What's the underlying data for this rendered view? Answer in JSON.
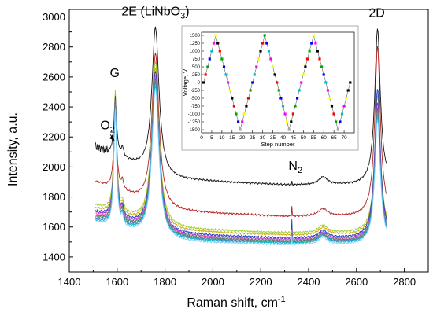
{
  "chart_data": [
    {
      "type": "line",
      "xlabel": "Raman shift, cm",
      "xlabel_sup": "-1",
      "ylabel": "Intensity, a.u.",
      "xlim": [
        1400,
        2900
      ],
      "ylim": [
        1300,
        3050
      ],
      "xticks": [
        1400,
        1600,
        1800,
        2000,
        2200,
        2400,
        2600,
        2800
      ],
      "yticks": [
        1400,
        1600,
        1800,
        2000,
        2200,
        2400,
        2600,
        2800,
        3000
      ],
      "grid": false,
      "annotations": [
        {
          "text": "2E (LiNbO",
          "sub": "3",
          "suffix": ")",
          "x": 1760,
          "y": 3010
        },
        {
          "text": "G",
          "x": 1590,
          "y": 2600
        },
        {
          "text": "O",
          "sub": "2",
          "suffix": "",
          "x": 1560,
          "y": 2250
        },
        {
          "text": "N",
          "sub": "2",
          "suffix": "",
          "x": 2345,
          "y": 1980
        },
        {
          "text": "2D",
          "x": 2685,
          "y": 3000
        }
      ],
      "series": [
        {
          "color": "#111111",
          "baseline_start": 2130,
          "baseline_mid": 1880,
          "g": 2440,
          "e": 2930,
          "n2": 1900,
          "d": 2920,
          "o2": true
        },
        {
          "color": "#b22222",
          "baseline_start": 1900,
          "baseline_mid": 1670,
          "g": 2400,
          "e": 2760,
          "n2": 1740,
          "d": 2800
        },
        {
          "color": "#9acd32",
          "baseline_start": 1740,
          "baseline_mid": 1560,
          "g": 2500,
          "e": 2700,
          "n2": 1600,
          "d": 2500
        },
        {
          "color": "#ccaa00",
          "baseline_start": 1720,
          "baseline_mid": 1545,
          "g": 2470,
          "e": 2660,
          "n2": 1590,
          "d": 2480
        },
        {
          "color": "#1f3fbf",
          "baseline_start": 1700,
          "baseline_mid": 1525,
          "g": 2460,
          "e": 2640,
          "n2": 1650,
          "d": 2520
        },
        {
          "color": "#8a2be2",
          "baseline_start": 1690,
          "baseline_mid": 1515,
          "g": 2440,
          "e": 2610,
          "n2": 1580,
          "d": 2430
        },
        {
          "color": "#ff69b4",
          "baseline_start": 1680,
          "baseline_mid": 1510,
          "g": 2430,
          "e": 2600,
          "n2": 1570,
          "d": 2400
        },
        {
          "color": "#2e8b57",
          "baseline_start": 1670,
          "baseline_mid": 1505,
          "g": 2420,
          "e": 2590,
          "n2": 1560,
          "d": 2390
        },
        {
          "color": "#708090",
          "baseline_start": 1660,
          "baseline_mid": 1500,
          "g": 2410,
          "e": 2570,
          "n2": 1555,
          "d": 2370
        },
        {
          "color": "#4682b4",
          "baseline_start": 1650,
          "baseline_mid": 1495,
          "g": 2400,
          "e": 2560,
          "n2": 1550,
          "d": 2350
        },
        {
          "color": "#00bcd4",
          "baseline_start": 1640,
          "baseline_mid": 1490,
          "g": 2390,
          "e": 2540,
          "n2": 1545,
          "d": 2330
        },
        {
          "color": "#87cefa",
          "baseline_start": 1630,
          "baseline_mid": 1480,
          "g": 2380,
          "e": 2520,
          "n2": 1535,
          "d": 2310
        }
      ]
    },
    {
      "type": "line",
      "role": "inset",
      "xlabel": "Step number",
      "ylabel": "Voltage, V",
      "xlim": [
        0,
        75
      ],
      "ylim": [
        -1600,
        1600
      ],
      "xticks": [
        0,
        5,
        10,
        15,
        20,
        25,
        30,
        35,
        40,
        45,
        50,
        55,
        60,
        65,
        70
      ],
      "yticks": [
        -1500,
        -1250,
        -1000,
        -750,
        -500,
        -250,
        0,
        250,
        500,
        750,
        1000,
        1250,
        1500
      ],
      "points": [
        {
          "x": 1,
          "y": 0,
          "c": "#000000"
        },
        {
          "x": 2,
          "y": 250,
          "c": "#ff0000"
        },
        {
          "x": 3,
          "y": 500,
          "c": "#00aa00"
        },
        {
          "x": 4,
          "y": 750,
          "c": "#0000ff"
        },
        {
          "x": 5,
          "y": 1000,
          "c": "#00bcd4"
        },
        {
          "x": 6,
          "y": 1250,
          "c": "#ff00ff"
        },
        {
          "x": 7,
          "y": 1500,
          "c": "#ffff00"
        },
        {
          "x": 8,
          "y": 1250,
          "c": "#000000"
        },
        {
          "x": 9,
          "y": 1000,
          "c": "#ff0000"
        },
        {
          "x": 10,
          "y": 750,
          "c": "#00aa00"
        },
        {
          "x": 11,
          "y": 500,
          "c": "#0000ff"
        },
        {
          "x": 12,
          "y": 250,
          "c": "#00bcd4"
        },
        {
          "x": 13,
          "y": 0,
          "c": "#ff00ff"
        },
        {
          "x": 14,
          "y": -250,
          "c": "#ffff00"
        },
        {
          "x": 15,
          "y": -500,
          "c": "#000000"
        },
        {
          "x": 16,
          "y": -750,
          "c": "#ff0000"
        },
        {
          "x": 17,
          "y": -1000,
          "c": "#00aa00"
        },
        {
          "x": 18,
          "y": -1250,
          "c": "#0000ff"
        },
        {
          "x": 19,
          "y": -1500,
          "c": "#aaaaaa"
        },
        {
          "x": 20,
          "y": -1250,
          "c": "#ff00ff"
        },
        {
          "x": 21,
          "y": -1000,
          "c": "#ffff00"
        },
        {
          "x": 22,
          "y": -750,
          "c": "#000000"
        },
        {
          "x": 23,
          "y": -500,
          "c": "#ff0000"
        },
        {
          "x": 24,
          "y": -250,
          "c": "#00aa00"
        },
        {
          "x": 25,
          "y": 0,
          "c": "#0000ff"
        },
        {
          "x": 26,
          "y": 250,
          "c": "#00bcd4"
        },
        {
          "x": 27,
          "y": 500,
          "c": "#ff00ff"
        },
        {
          "x": 28,
          "y": 750,
          "c": "#ffff00"
        },
        {
          "x": 29,
          "y": 1000,
          "c": "#000000"
        },
        {
          "x": 30,
          "y": 1250,
          "c": "#ff0000"
        },
        {
          "x": 31,
          "y": 1500,
          "c": "#00aa00"
        },
        {
          "x": 32,
          "y": 1250,
          "c": "#0000ff"
        },
        {
          "x": 33,
          "y": 1000,
          "c": "#00bcd4"
        },
        {
          "x": 34,
          "y": 750,
          "c": "#ff00ff"
        },
        {
          "x": 35,
          "y": 500,
          "c": "#ffff00"
        },
        {
          "x": 36,
          "y": 250,
          "c": "#000000"
        },
        {
          "x": 37,
          "y": 0,
          "c": "#ff0000"
        },
        {
          "x": 38,
          "y": -250,
          "c": "#00aa00"
        },
        {
          "x": 39,
          "y": -500,
          "c": "#0000ff"
        },
        {
          "x": 40,
          "y": -750,
          "c": "#00bcd4"
        },
        {
          "x": 41,
          "y": -1000,
          "c": "#ff00ff"
        },
        {
          "x": 42,
          "y": -1250,
          "c": "#ffff00"
        },
        {
          "x": 43,
          "y": -1500,
          "c": "#aaaaaa"
        },
        {
          "x": 44,
          "y": -1250,
          "c": "#000000"
        },
        {
          "x": 45,
          "y": -1000,
          "c": "#ff0000"
        },
        {
          "x": 46,
          "y": -750,
          "c": "#00aa00"
        },
        {
          "x": 47,
          "y": -500,
          "c": "#0000ff"
        },
        {
          "x": 48,
          "y": -250,
          "c": "#00bcd4"
        },
        {
          "x": 49,
          "y": 0,
          "c": "#ff00ff"
        },
        {
          "x": 50,
          "y": 250,
          "c": "#ffff00"
        },
        {
          "x": 51,
          "y": 500,
          "c": "#000000"
        },
        {
          "x": 52,
          "y": 750,
          "c": "#ff0000"
        },
        {
          "x": 53,
          "y": 1000,
          "c": "#00aa00"
        },
        {
          "x": 54,
          "y": 1250,
          "c": "#0000ff"
        },
        {
          "x": 55,
          "y": 1500,
          "c": "#ffff00"
        },
        {
          "x": 56,
          "y": 1250,
          "c": "#ff00ff"
        },
        {
          "x": 57,
          "y": 1000,
          "c": "#000000"
        },
        {
          "x": 58,
          "y": 750,
          "c": "#ff0000"
        },
        {
          "x": 59,
          "y": 500,
          "c": "#00aa00"
        },
        {
          "x": 60,
          "y": 250,
          "c": "#0000ff"
        },
        {
          "x": 61,
          "y": 0,
          "c": "#00bcd4"
        },
        {
          "x": 62,
          "y": -250,
          "c": "#ff00ff"
        },
        {
          "x": 63,
          "y": -500,
          "c": "#ffff00"
        },
        {
          "x": 64,
          "y": -750,
          "c": "#000000"
        },
        {
          "x": 65,
          "y": -1000,
          "c": "#ff0000"
        },
        {
          "x": 66,
          "y": -1250,
          "c": "#00aa00"
        },
        {
          "x": 67,
          "y": -1500,
          "c": "#aaaaaa"
        },
        {
          "x": 68,
          "y": -1250,
          "c": "#0000ff"
        },
        {
          "x": 69,
          "y": -1000,
          "c": "#00bcd4"
        },
        {
          "x": 70,
          "y": -750,
          "c": "#ff00ff"
        },
        {
          "x": 71,
          "y": -500,
          "c": "#ffff00"
        },
        {
          "x": 72,
          "y": -250,
          "c": "#000000"
        },
        {
          "x": 73,
          "y": 0,
          "c": "#000000"
        }
      ]
    }
  ]
}
